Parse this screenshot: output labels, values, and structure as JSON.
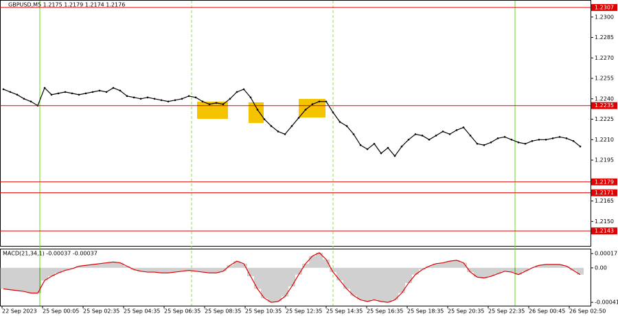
{
  "chart_data": [
    {
      "type": "line",
      "title": "GBPUSD,M5  1.2175 1.2179 1.2174 1.2176",
      "color": "#000000",
      "values": [
        1.2247,
        1.2245,
        1.2243,
        1.224,
        1.2238,
        1.2235,
        1.2248,
        1.2243,
        1.2244,
        1.2245,
        1.2244,
        1.2243,
        1.2244,
        1.2245,
        1.2246,
        1.2245,
        1.2248,
        1.2246,
        1.2242,
        1.2241,
        1.224,
        1.2241,
        1.224,
        1.2239,
        1.2238,
        1.2239,
        1.224,
        1.2242,
        1.2241,
        1.2238,
        1.2236,
        1.2237,
        1.2236,
        1.224,
        1.2245,
        1.2247,
        1.2241,
        1.2232,
        1.2225,
        1.222,
        1.2216,
        1.2214,
        1.222,
        1.2226,
        1.2232,
        1.2236,
        1.2238,
        1.2238,
        1.223,
        1.2223,
        1.222,
        1.2214,
        1.2206,
        1.2203,
        1.2207,
        1.22,
        1.2204,
        1.2198,
        1.2205,
        1.221,
        1.2214,
        1.2213,
        1.221,
        1.2213,
        1.2216,
        1.2214,
        1.2217,
        1.2219,
        1.2213,
        1.2207,
        1.2206,
        1.2208,
        1.2211,
        1.2212,
        1.221,
        1.2208,
        1.2207,
        1.2209,
        1.221,
        1.221,
        1.2211,
        1.2212,
        1.2211,
        1.2209,
        1.2205
      ],
      "ylim": [
        1.2132,
        1.2312
      ],
      "yticks": [
        {
          "value": 1.23,
          "label": "1.2300"
        },
        {
          "value": 1.2285,
          "label": "1.2285"
        },
        {
          "value": 1.227,
          "label": "1.2270"
        },
        {
          "value": 1.2255,
          "label": "1.2255"
        },
        {
          "value": 1.224,
          "label": "1.2240"
        },
        {
          "value": 1.2225,
          "label": "1.2225"
        },
        {
          "value": 1.221,
          "label": "1.2210"
        },
        {
          "value": 1.2195,
          "label": "1.2195"
        },
        {
          "value": 1.2165,
          "label": "1.2165"
        },
        {
          "value": 1.215,
          "label": "1.2150"
        }
      ],
      "levels": [
        {
          "value": 1.2307,
          "label": "1.2307"
        },
        {
          "value": 1.2235,
          "label": "1.2235"
        },
        {
          "value": 1.2179,
          "label": "1.2179"
        },
        {
          "value": 1.2171,
          "label": "1.2171"
        },
        {
          "value": 1.2143,
          "label": "1.2143"
        }
      ],
      "level_color": "#e00000",
      "xticks": [
        "22 Sep 2023",
        "25 Sep 00:05",
        "25 Sep 02:35",
        "25 Sep 04:35",
        "25 Sep 06:35",
        "25 Sep 08:35",
        "25 Sep 10:35",
        "25 Sep 12:35",
        "25 Sep 14:35",
        "25 Sep 16:35",
        "25 Sep 18:35",
        "25 Sep 20:35",
        "25 Sep 22:35",
        "26 Sep 00:45",
        "26 Sep 02:50"
      ]
    },
    {
      "type": "histogram-line",
      "title": "MACD(21,34,1) -0.00037 -0.00037",
      "color": "#a0a0a0",
      "line_color": "#e00000",
      "values": [
        -0.00025,
        -0.00026,
        -0.00027,
        -0.00028,
        -0.0003,
        -0.0003,
        -0.00015,
        -0.0001,
        -6e-05,
        -3e-05,
        -1e-05,
        2e-05,
        3e-05,
        4e-05,
        5e-05,
        6e-05,
        7e-05,
        6e-05,
        2e-05,
        -2e-05,
        -4e-05,
        -5e-05,
        -5e-05,
        -6e-05,
        -6e-05,
        -5e-05,
        -4e-05,
        -3e-05,
        -4e-05,
        -5e-05,
        -6e-05,
        -6e-05,
        -4e-05,
        3e-05,
        8e-05,
        5e-05,
        -0.0001,
        -0.00025,
        -0.00036,
        -0.00041,
        -0.0004,
        -0.00034,
        -0.00022,
        -8e-05,
        5e-05,
        0.00014,
        0.00018,
        0.0001,
        -5e-05,
        -0.00015,
        -0.00025,
        -0.00033,
        -0.00038,
        -0.0004,
        -0.00038,
        -0.0004,
        -0.00041,
        -0.00038,
        -0.0003,
        -0.00018,
        -8e-05,
        -2e-05,
        2e-05,
        5e-05,
        6e-05,
        8e-05,
        9e-05,
        6e-05,
        -5e-05,
        -0.00011,
        -0.00012,
        -0.0001,
        -7e-05,
        -4e-05,
        -5e-05,
        -8e-05,
        -4e-05,
        0,
        3e-05,
        4e-05,
        4e-05,
        4e-05,
        2e-05,
        -3e-05,
        -8e-05
      ],
      "ylim": [
        -0.00045,
        0.00022
      ],
      "yticks": [
        0.00017,
        {
          "value": 0,
          "label": "0.00"
        },
        -0.00041
      ]
    }
  ]
}
